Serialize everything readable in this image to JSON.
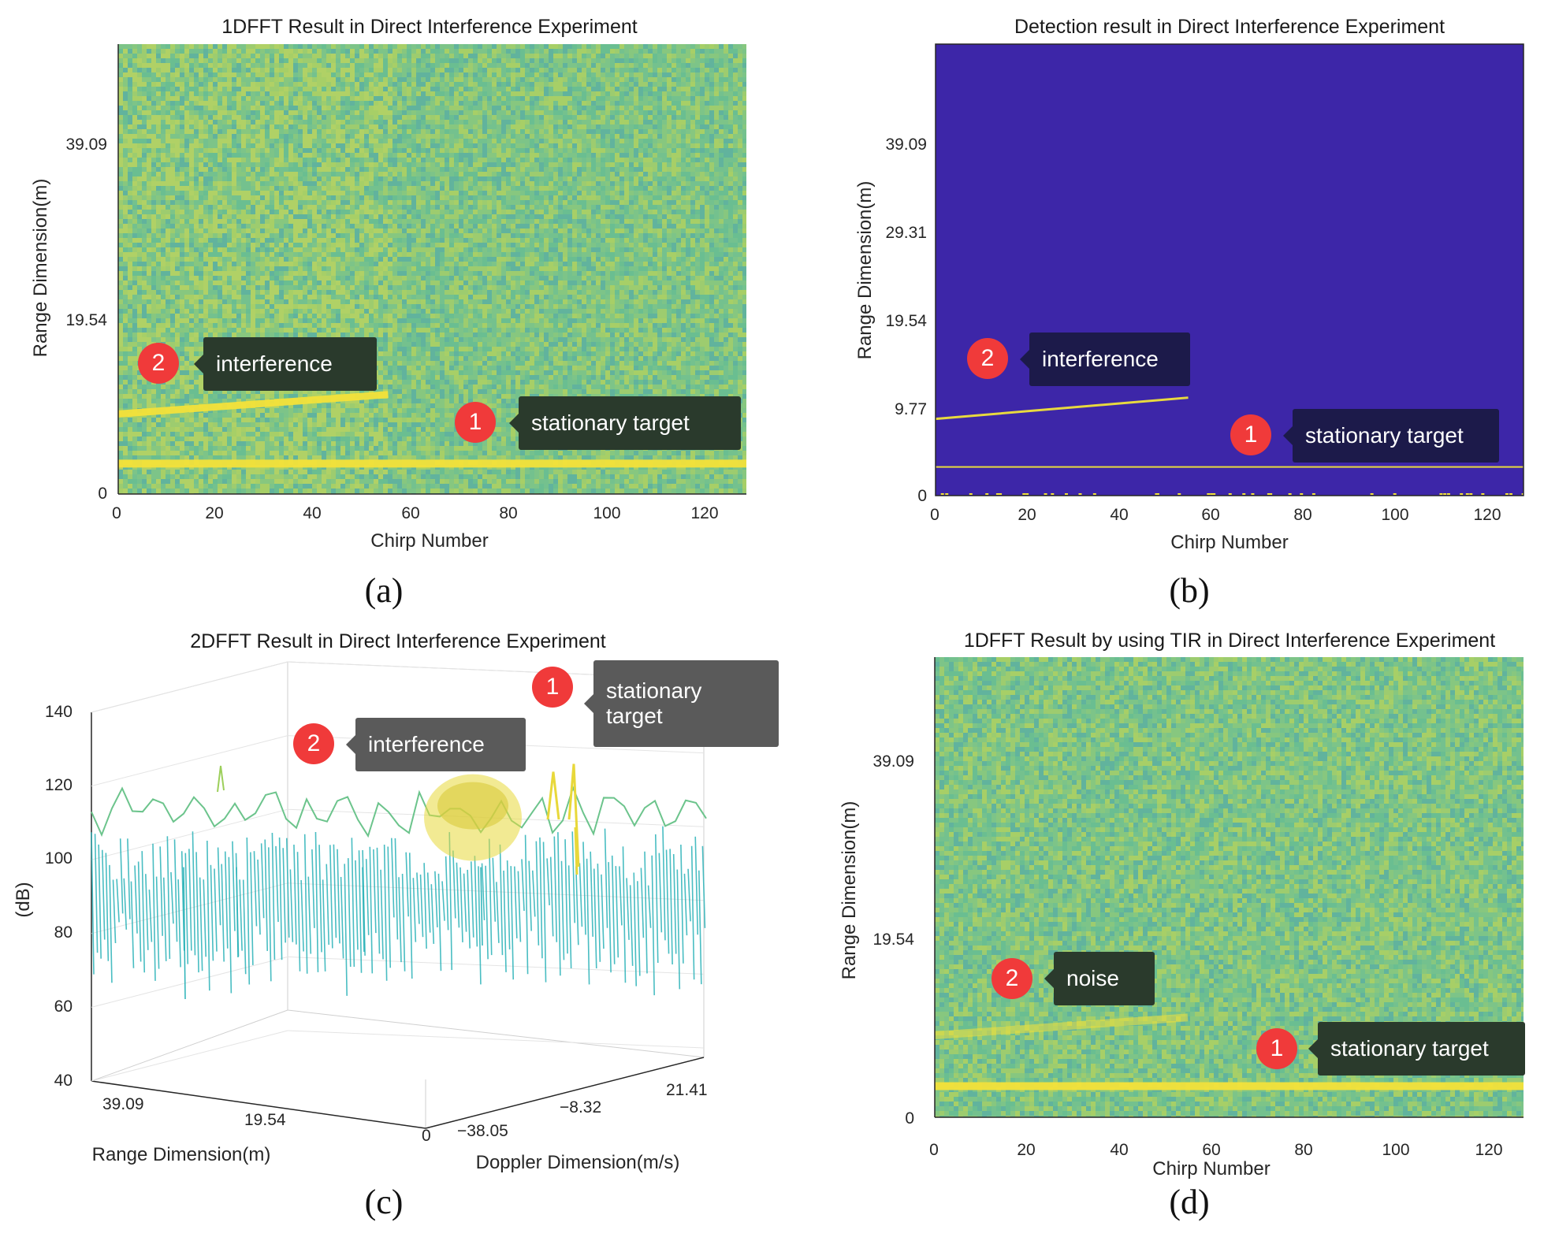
{
  "colors": {
    "heatmap_base": "#7ec486",
    "heatmap_yellow": "#f4e23a",
    "detect_bg": "#3d26a8",
    "detect_line": "#f2e33a",
    "badge": "#f03a3a",
    "callout_dark": "#2a3a2c",
    "callout_navy": "#1c1a4a",
    "callout_grey": "#5a5a5a",
    "mesh_teal": "#2ab2b8",
    "mesh_yellow": "#e8d83a"
  },
  "chart_data": [
    {
      "id": "a",
      "type": "heatmap",
      "caption": "(a)",
      "title": "1DFFT Result in Direct Interference Experiment",
      "xlabel": "Chirp Number",
      "ylabel": "Range Dimension(m)",
      "xlim": [
        0,
        128
      ],
      "ylim": [
        0,
        48.86
      ],
      "xticks": [
        "0",
        "20",
        "40",
        "60",
        "80",
        "100",
        "120"
      ],
      "xtick_values": [
        0,
        20,
        40,
        60,
        80,
        100,
        120
      ],
      "yticks": [
        "0",
        "19.54",
        "39.09"
      ],
      "ytick_values": [
        0,
        19.54,
        39.09
      ],
      "stationary_target_range": 3.3,
      "interference_segment": {
        "chirp_start": 0,
        "chirp_end": 55,
        "range_start": 8.7,
        "range_end": 10.8
      },
      "annotations": [
        {
          "num": "2",
          "text": "interference"
        },
        {
          "num": "1",
          "text": "stationary target"
        }
      ]
    },
    {
      "id": "b",
      "type": "heatmap",
      "caption": "(b)",
      "title": "Detection result in Direct Interference Experiment",
      "xlabel": "Chirp Number",
      "ylabel": "Range Dimension(m)",
      "xlim": [
        0,
        128
      ],
      "ylim": [
        0,
        48.86
      ],
      "xticks": [
        "0",
        "20",
        "40",
        "60",
        "80",
        "100",
        "120"
      ],
      "xtick_values": [
        0,
        20,
        40,
        60,
        80,
        100,
        120
      ],
      "yticks": [
        "0",
        "9.77",
        "19.54",
        "29.31",
        "39.09"
      ],
      "ytick_values": [
        0,
        9.77,
        19.54,
        29.31,
        39.09
      ],
      "stationary_target_range": 3.1,
      "interference_segment": {
        "chirp_start": 0,
        "chirp_end": 55,
        "range_start": 8.3,
        "range_end": 10.6
      },
      "annotations": [
        {
          "num": "2",
          "text": "interference"
        },
        {
          "num": "1",
          "text": "stationary target"
        }
      ]
    },
    {
      "id": "c",
      "type": "surface",
      "caption": "(c)",
      "title": "2DFFT Result in Direct Interference Experiment",
      "zlabel": "(dB)",
      "xlabel": "Range Dimension(m)",
      "ylabel": "Doppler Dimension(m/s)",
      "zlim": [
        40,
        140
      ],
      "zticks": [
        "40",
        "60",
        "80",
        "100",
        "120",
        "140"
      ],
      "ztick_values": [
        40,
        60,
        80,
        100,
        120,
        140
      ],
      "range_ticks": [
        "39.09",
        "19.54",
        "0"
      ],
      "doppler_ticks": [
        "−38.05",
        "−8.32",
        "21.41"
      ],
      "noise_floor_db": 98,
      "interference_peak_db": 120,
      "stationary_peak_db": 126,
      "annotations": [
        {
          "num": "2",
          "text": "interference"
        },
        {
          "num": "1",
          "text": "stationary target",
          "line1": "stationary",
          "line2": "target"
        }
      ]
    },
    {
      "id": "d",
      "type": "heatmap",
      "caption": "(d)",
      "title": "1DFFT Result by using TIR in Direct Interference Experiment",
      "xlabel": "Chirp Number",
      "ylabel": "Range Dimension(m)",
      "xlim": [
        0,
        128
      ],
      "ylim": [
        0,
        48.86
      ],
      "xticks": [
        "0",
        "20",
        "40",
        "60",
        "80",
        "100",
        "120"
      ],
      "xtick_values": [
        0,
        20,
        40,
        60,
        80,
        100,
        120
      ],
      "yticks": [
        "0",
        "19.54",
        "39.09"
      ],
      "ytick_values": [
        0,
        19.54,
        39.09
      ],
      "stationary_target_range": 3.3,
      "interference_segment": {
        "chirp_start": 0,
        "chirp_end": 55,
        "range_start": 8.7,
        "range_end": 10.6
      },
      "annotations": [
        {
          "num": "2",
          "text": "noise"
        },
        {
          "num": "1",
          "text": "stationary target"
        }
      ]
    }
  ]
}
